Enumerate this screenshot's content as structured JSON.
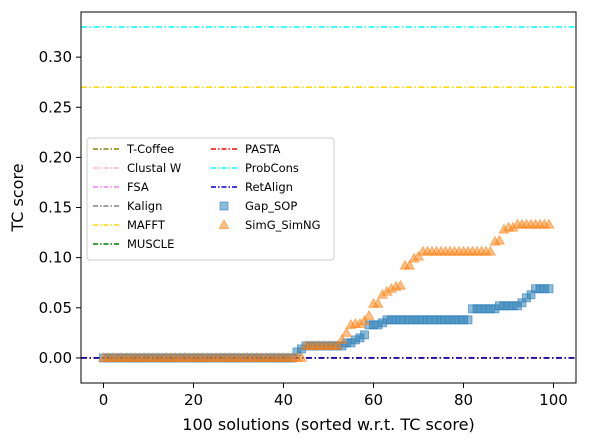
{
  "chart_data": {
    "type": "scatter",
    "xlabel": "100 solutions (sorted w.r.t. TC score)",
    "ylabel": "TC score",
    "xlim": [
      -5,
      105
    ],
    "ylim": [
      -0.025,
      0.345
    ],
    "xticks": [
      0,
      20,
      40,
      60,
      80,
      100
    ],
    "yticks": [
      0.0,
      0.05,
      0.1,
      0.15,
      0.2,
      0.25,
      0.3
    ],
    "ytick_labels": [
      "0.00",
      "0.05",
      "0.10",
      "0.15",
      "0.20",
      "0.25",
      "0.30"
    ],
    "grid": false,
    "legend_position": "center-left",
    "reference_lines": [
      {
        "name": "T-Coffee",
        "y": 0.0,
        "color": "#808000"
      },
      {
        "name": "Clustal W",
        "y": 0.0,
        "color": "#ffb6c1"
      },
      {
        "name": "FSA",
        "y": 0.0,
        "color": "#ee82ee"
      },
      {
        "name": "Kalign",
        "y": 0.0,
        "color": "#808080"
      },
      {
        "name": "MAFFT",
        "y": 0.27,
        "color": "#ffd700"
      },
      {
        "name": "MUSCLE",
        "y": 0.0,
        "color": "#008000"
      },
      {
        "name": "PASTA",
        "y": 0.0,
        "color": "#ff0000"
      },
      {
        "name": "ProbCons",
        "y": 0.33,
        "color": "#00ffff"
      },
      {
        "name": "RetAlign",
        "y": 0.0,
        "color": "#0000cd"
      }
    ],
    "series": [
      {
        "name": "Gap_SOP",
        "marker": "square",
        "color": "#1f77b4",
        "segments": [
          {
            "from": 0,
            "to": 42,
            "y": 0.0
          },
          {
            "from": 43,
            "to": 43,
            "y": 0.006
          },
          {
            "from": 44,
            "to": 44,
            "y": 0.009
          },
          {
            "from": 45,
            "to": 53,
            "y": 0.012
          },
          {
            "from": 54,
            "to": 55,
            "y": 0.015
          },
          {
            "from": 56,
            "to": 56,
            "y": 0.018
          },
          {
            "from": 57,
            "to": 57,
            "y": 0.02
          },
          {
            "from": 58,
            "to": 58,
            "y": 0.023
          },
          {
            "from": 59,
            "to": 61,
            "y": 0.033
          },
          {
            "from": 62,
            "to": 62,
            "y": 0.035
          },
          {
            "from": 63,
            "to": 81,
            "y": 0.038
          },
          {
            "from": 82,
            "to": 87,
            "y": 0.049
          },
          {
            "from": 88,
            "to": 92,
            "y": 0.052
          },
          {
            "from": 93,
            "to": 93,
            "y": 0.055
          },
          {
            "from": 94,
            "to": 94,
            "y": 0.06
          },
          {
            "from": 95,
            "to": 95,
            "y": 0.063
          },
          {
            "from": 96,
            "to": 99,
            "y": 0.069
          }
        ]
      },
      {
        "name": "SimG_SimNG",
        "marker": "triangle",
        "color": "#ff7f0e",
        "segments": [
          {
            "from": 0,
            "to": 44,
            "y": 0.0
          },
          {
            "from": 45,
            "to": 52,
            "y": 0.012
          },
          {
            "from": 53,
            "to": 53,
            "y": 0.018
          },
          {
            "from": 54,
            "to": 54,
            "y": 0.025
          },
          {
            "from": 55,
            "to": 55,
            "y": 0.033
          },
          {
            "from": 56,
            "to": 57,
            "y": 0.034
          },
          {
            "from": 58,
            "to": 58,
            "y": 0.037
          },
          {
            "from": 59,
            "to": 59,
            "y": 0.042
          },
          {
            "from": 60,
            "to": 61,
            "y": 0.054
          },
          {
            "from": 62,
            "to": 62,
            "y": 0.063
          },
          {
            "from": 63,
            "to": 63,
            "y": 0.066
          },
          {
            "from": 64,
            "to": 64,
            "y": 0.069
          },
          {
            "from": 65,
            "to": 65,
            "y": 0.071
          },
          {
            "from": 66,
            "to": 66,
            "y": 0.072
          },
          {
            "from": 67,
            "to": 68,
            "y": 0.092
          },
          {
            "from": 69,
            "to": 69,
            "y": 0.099
          },
          {
            "from": 70,
            "to": 70,
            "y": 0.101
          },
          {
            "from": 71,
            "to": 86,
            "y": 0.106
          },
          {
            "from": 87,
            "to": 87,
            "y": 0.116
          },
          {
            "from": 88,
            "to": 88,
            "y": 0.117
          },
          {
            "from": 89,
            "to": 89,
            "y": 0.128
          },
          {
            "from": 90,
            "to": 91,
            "y": 0.13
          },
          {
            "from": 92,
            "to": 99,
            "y": 0.133
          }
        ]
      }
    ]
  }
}
